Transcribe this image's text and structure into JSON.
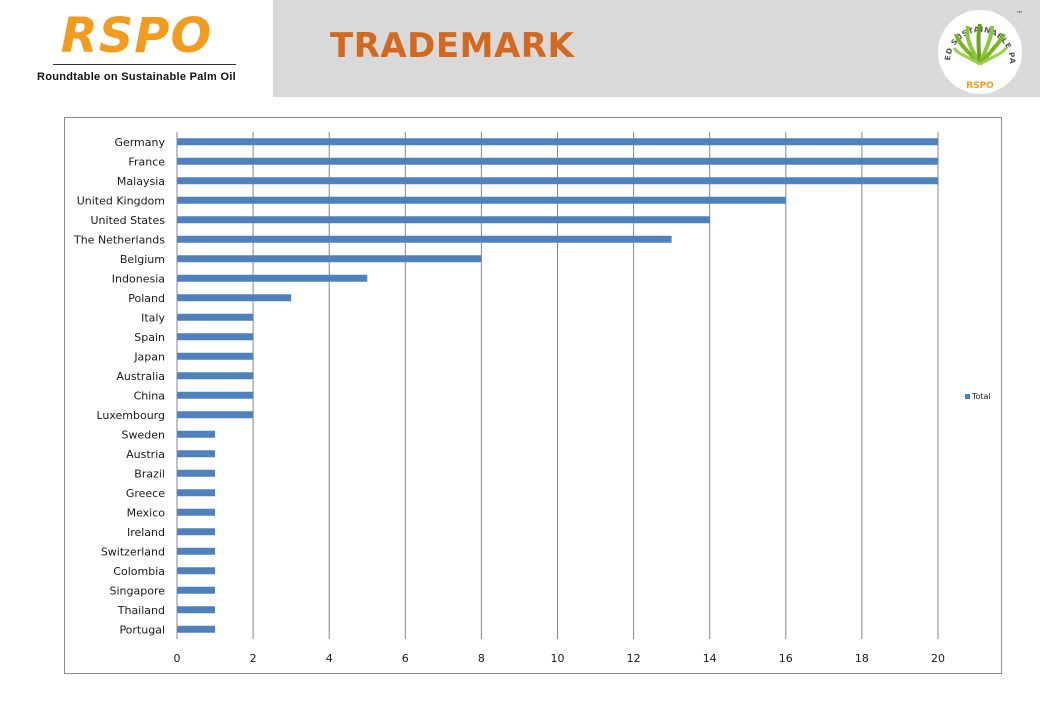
{
  "header": {
    "logo": "RSPO",
    "tagline": "Roundtable on Sustainable Palm Oil",
    "title": "TRADEMARK",
    "badge_text": "CERTIFIED SUSTAINABLE PALM OIL",
    "badge_brand": "RSPO",
    "badge_tm": "™"
  },
  "colors": {
    "bar": "#4f81bd",
    "title": "#d2691e",
    "logo": "#f29c1f",
    "header_band": "#d9d9d9"
  },
  "chart_data": {
    "type": "bar",
    "orientation": "horizontal",
    "categories": [
      "Germany",
      "France",
      "Malaysia",
      "United Kingdom",
      "United States",
      "The Netherlands",
      "Belgium",
      "Indonesia",
      "Poland",
      "Italy",
      "Spain",
      "Japan",
      "Australia",
      "China",
      "Luxembourg",
      "Sweden",
      "Austria",
      "Brazil",
      "Greece",
      "Mexico",
      "Ireland",
      "Switzerland",
      "Colombia",
      "Singapore",
      "Thailand",
      "Portugal"
    ],
    "series": [
      {
        "name": "Total",
        "values": [
          20,
          20,
          20,
          16,
          14,
          13,
          8,
          5,
          3,
          2,
          2,
          2,
          2,
          2,
          2,
          1,
          1,
          1,
          1,
          1,
          1,
          1,
          1,
          1,
          1,
          1
        ]
      }
    ],
    "xlim": [
      0,
      20
    ],
    "xticks": [
      "0",
      "2",
      "4",
      "6",
      "8",
      "10",
      "12",
      "14",
      "16",
      "18",
      "20"
    ],
    "grid": "vertical",
    "legend": "right"
  }
}
